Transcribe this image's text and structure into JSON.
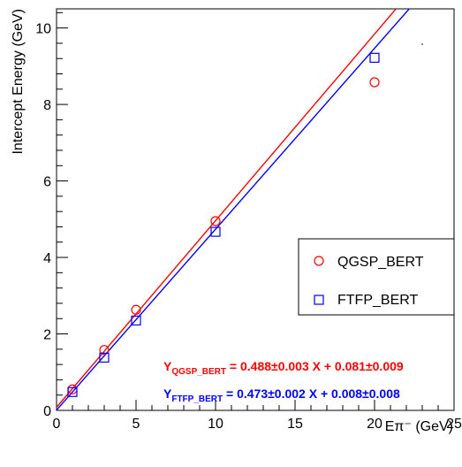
{
  "chart_data": {
    "type": "scatter",
    "xlabel": "Eπ⁻ (GeV)",
    "ylabel": "Intercept Energy (GeV)",
    "xlim": [
      0,
      25
    ],
    "ylim": [
      0,
      10.5
    ],
    "x_ticks": [
      "0",
      "5",
      "10",
      "15",
      "20",
      "25"
    ],
    "y_ticks": [
      "0",
      "2",
      "4",
      "6",
      "8",
      "10"
    ],
    "grid": false,
    "legend_position": "right",
    "series": [
      {
        "name": "QGSP_BERT",
        "marker": "circle",
        "color": "#ff0000",
        "x": [
          1,
          3,
          5,
          10,
          20
        ],
        "y": [
          0.55,
          1.58,
          2.63,
          4.95,
          8.58
        ],
        "fit": {
          "slope": 0.488,
          "intercept": 0.081
        }
      },
      {
        "name": "FTFP_BERT",
        "marker": "square",
        "color": "#0000ff",
        "x": [
          1,
          3,
          5,
          10,
          20
        ],
        "y": [
          0.48,
          1.38,
          2.35,
          4.67,
          9.22
        ],
        "fit": {
          "slope": 0.473,
          "intercept": 0.008
        }
      }
    ],
    "annotations": [
      {
        "name": "qgsp-fit",
        "color": "#ff0000",
        "y_letter": "Y",
        "sub": "QGSP_BERT",
        "rest": " = 0.488±0.003 X + 0.081±0.009"
      },
      {
        "name": "ftfp-fit",
        "color": "#0000ff",
        "y_letter": "Y",
        "sub": "FTFP_BERT",
        "rest": " = 0.473±0.002 X + 0.008±0.008"
      }
    ]
  }
}
